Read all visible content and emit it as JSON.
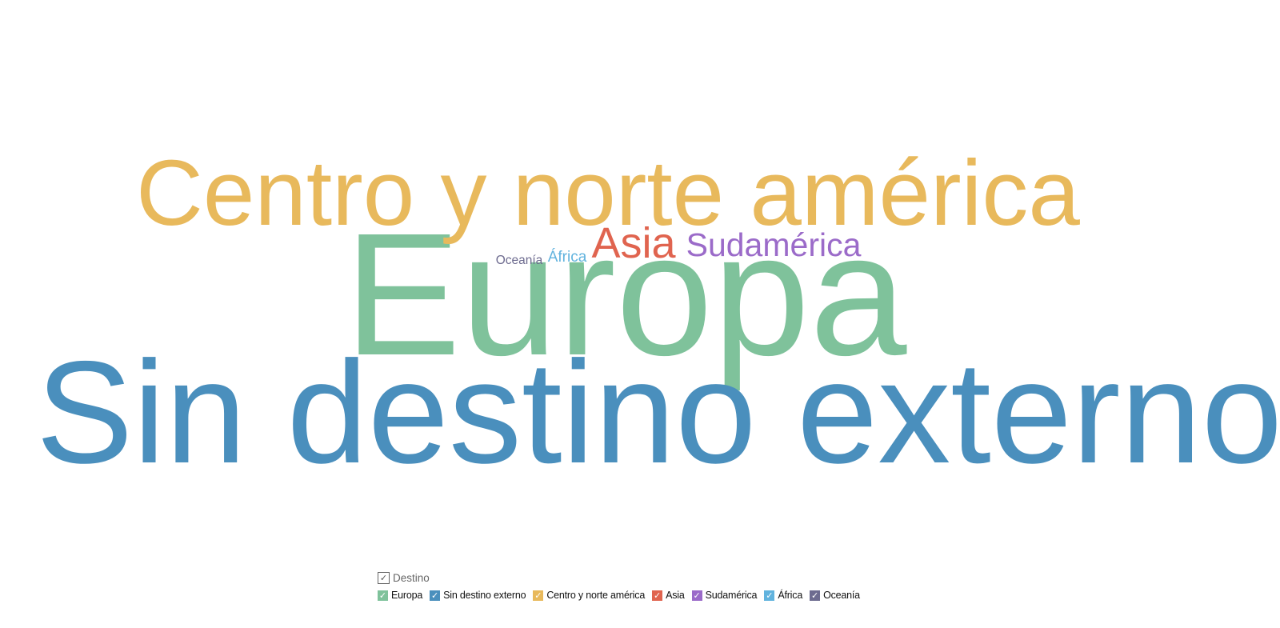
{
  "chart_data": {
    "type": "wordcloud",
    "legend": {
      "title": "Destino",
      "position": "bottom",
      "all_checked": true
    },
    "words": [
      {
        "text": "Europa",
        "color": "#7fc29b",
        "rank": 2
      },
      {
        "text": "Sin destino externo",
        "color": "#4a8fbd",
        "rank": 1
      },
      {
        "text": "Centro y norte américa",
        "color": "#e8b95c",
        "rank": 3
      },
      {
        "text": "Asia",
        "color": "#e0644f",
        "rank": 4
      },
      {
        "text": "Sudamérica",
        "color": "#9b6bc9",
        "rank": 5
      },
      {
        "text": "África",
        "color": "#61b3de",
        "rank": 6
      },
      {
        "text": "Oceanía",
        "color": "#6d6b8f",
        "rank": 7
      }
    ]
  },
  "legend_ui": {
    "header_check": "✓",
    "item_check": "✓",
    "items": [
      {
        "label": "Europa",
        "color": "#7fc29b",
        "checked": true
      },
      {
        "label": "Sin destino externo",
        "color": "#4a8fbd",
        "checked": true
      },
      {
        "label": "Centro y norte américa",
        "color": "#e8b95c",
        "checked": true
      },
      {
        "label": "Asia",
        "color": "#e0644f",
        "checked": true
      },
      {
        "label": "Sudamérica",
        "color": "#9b6bc9",
        "checked": true
      },
      {
        "label": "África",
        "color": "#61b3de",
        "checked": true
      },
      {
        "label": "Oceanía",
        "color": "#6d6b8f",
        "checked": true
      }
    ]
  }
}
